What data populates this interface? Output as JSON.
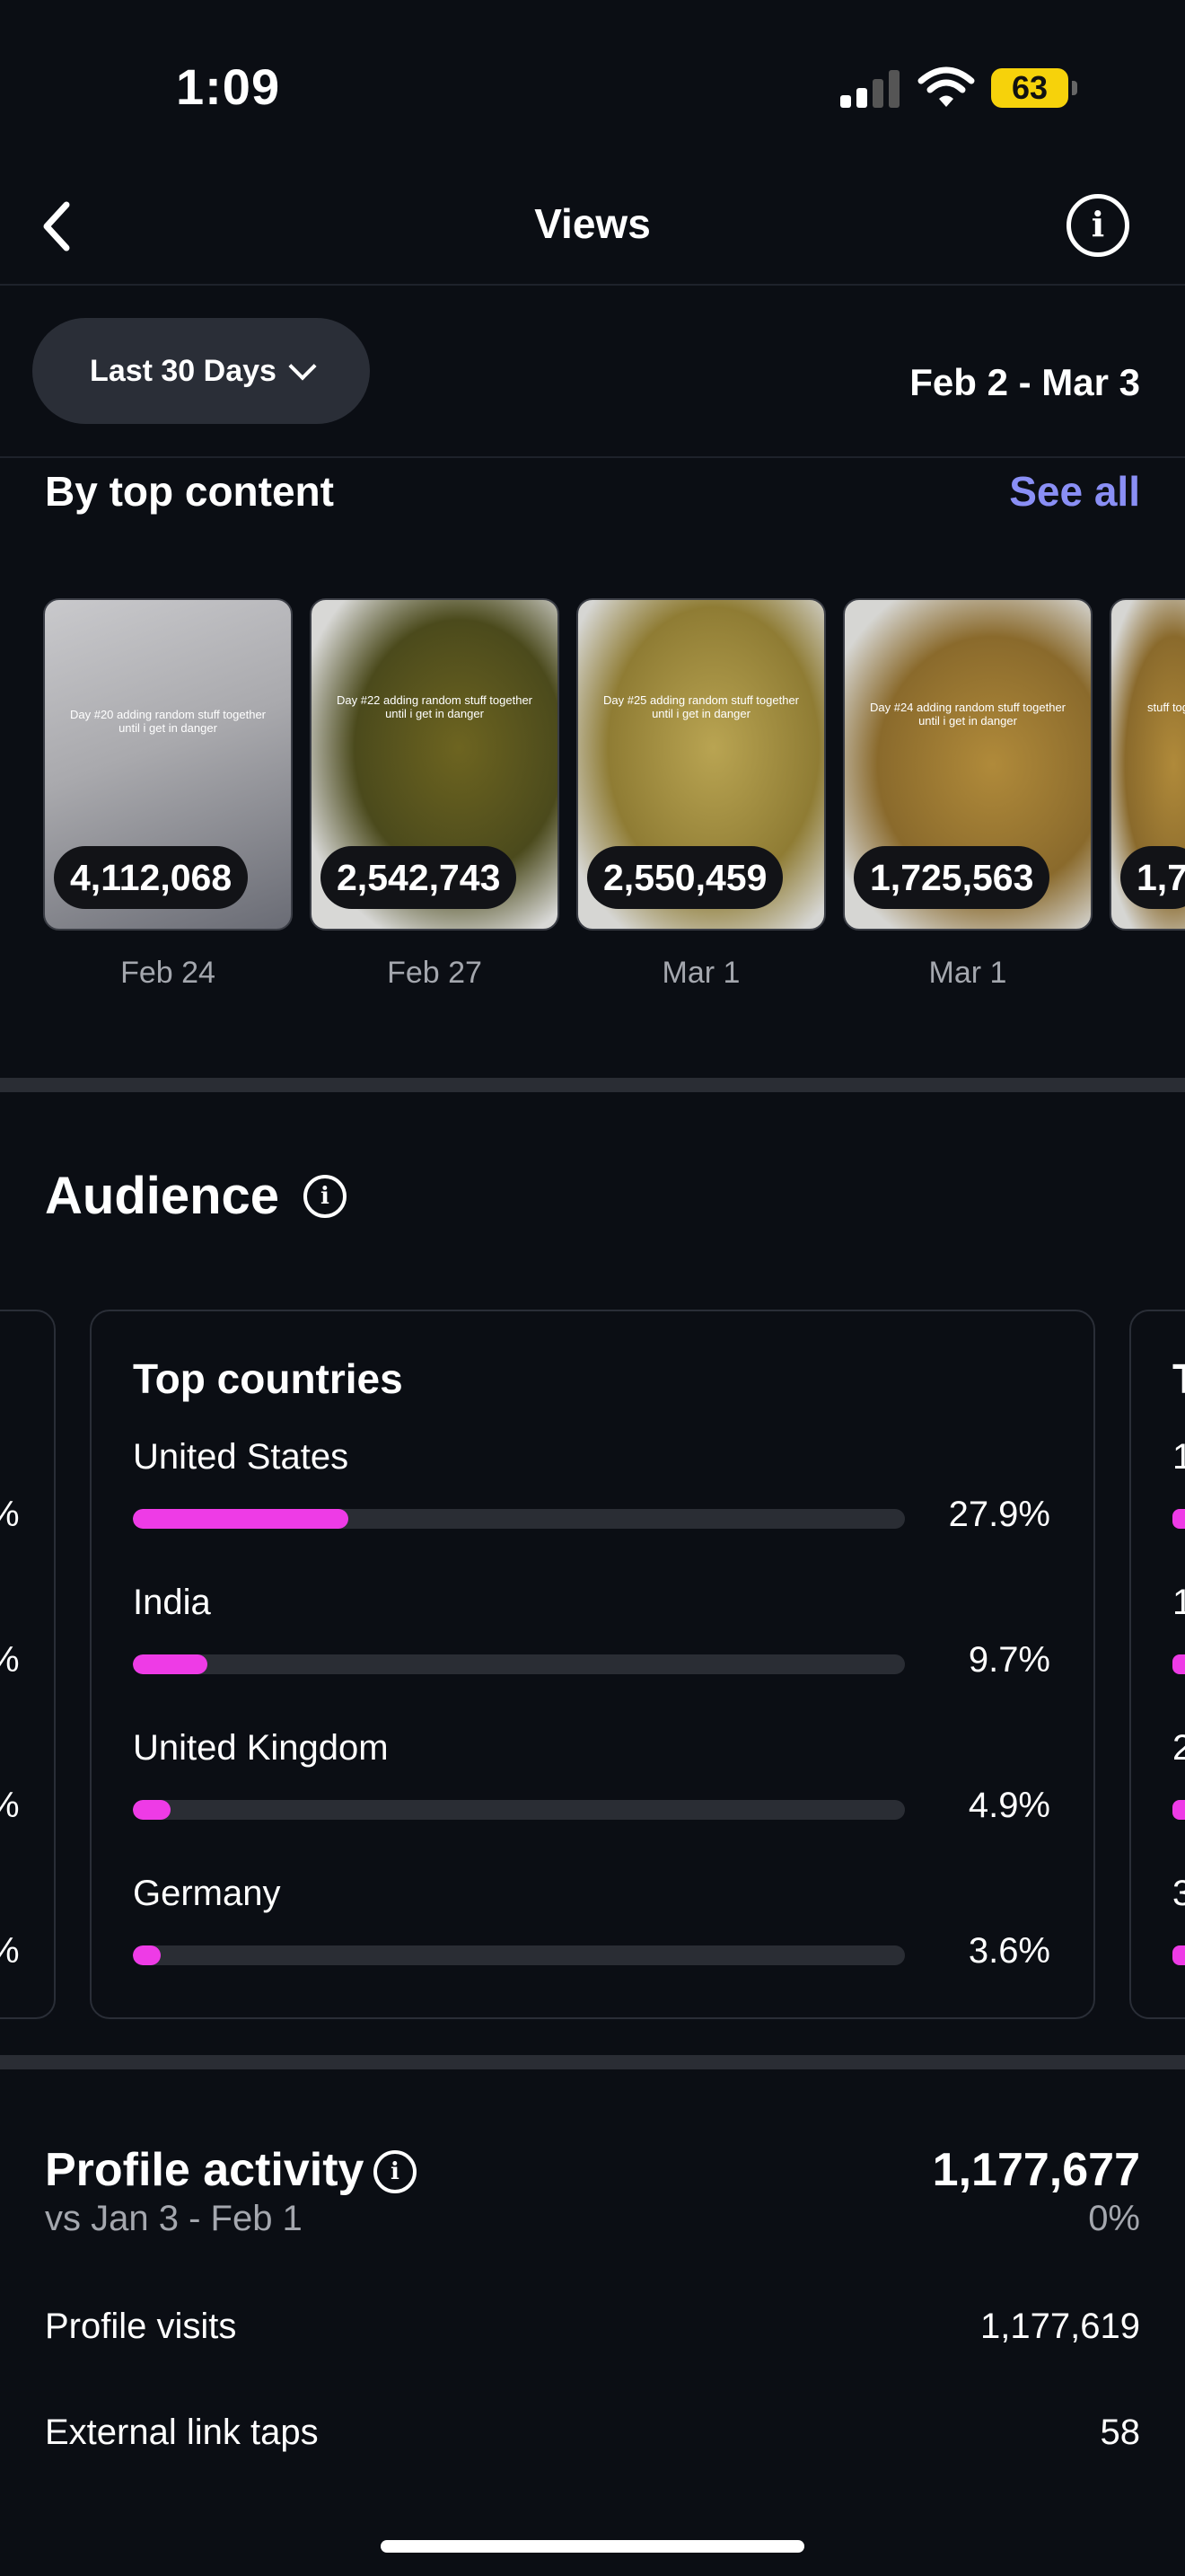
{
  "status": {
    "time": "1:09",
    "battery": "63"
  },
  "header": {
    "title": "Views"
  },
  "filter": {
    "range_label": "Last 30 Days",
    "date_range": "Feb 2 - Mar 3"
  },
  "top_content": {
    "title": "By top content",
    "see_all": "See all",
    "items": [
      {
        "count": "4,112,068",
        "date": "Feb 24",
        "caption": "Day #20 adding random stuff together until i get in danger"
      },
      {
        "count": "2,542,743",
        "date": "Feb 27",
        "caption": "Day #22 adding random stuff together until i get in danger"
      },
      {
        "count": "2,550,459",
        "date": "Mar 1",
        "caption": "Day #25 adding random stuff together until i get in danger"
      },
      {
        "count": "1,725,563",
        "date": "Mar 1",
        "caption": "Day #24 adding random stuff together until i get in danger"
      },
      {
        "count": "1,7",
        "date": "",
        "caption": "stuff tog"
      }
    ]
  },
  "audience": {
    "title": "Audience",
    "card_title": "Top countries",
    "countries": [
      {
        "name": "United States",
        "pct_label": "27.9%",
        "pct": 27.9
      },
      {
        "name": "India",
        "pct_label": "9.7%",
        "pct": 9.7
      },
      {
        "name": "United Kingdom",
        "pct_label": "4.9%",
        "pct": 4.9
      },
      {
        "name": "Germany",
        "pct_label": "3.6%",
        "pct": 3.6
      }
    ],
    "prev_card_partial": [
      "%",
      "%",
      "%",
      "%"
    ],
    "next_card_partial": {
      "title": "T",
      "rows": [
        "1",
        "1",
        "2",
        "3"
      ]
    }
  },
  "profile_activity": {
    "title": "Profile activity",
    "vs": "vs Jan 3 - Feb 1",
    "total": "1,177,677",
    "change": "0%",
    "rows": [
      {
        "label": "Profile visits",
        "value": "1,177,619"
      },
      {
        "label": "External link taps",
        "value": "58"
      }
    ]
  },
  "colors": {
    "accent": "#8a8ff5",
    "bar_fill": "#ee3be6",
    "battery": "#f6d20b",
    "background": "#0b0e14"
  }
}
